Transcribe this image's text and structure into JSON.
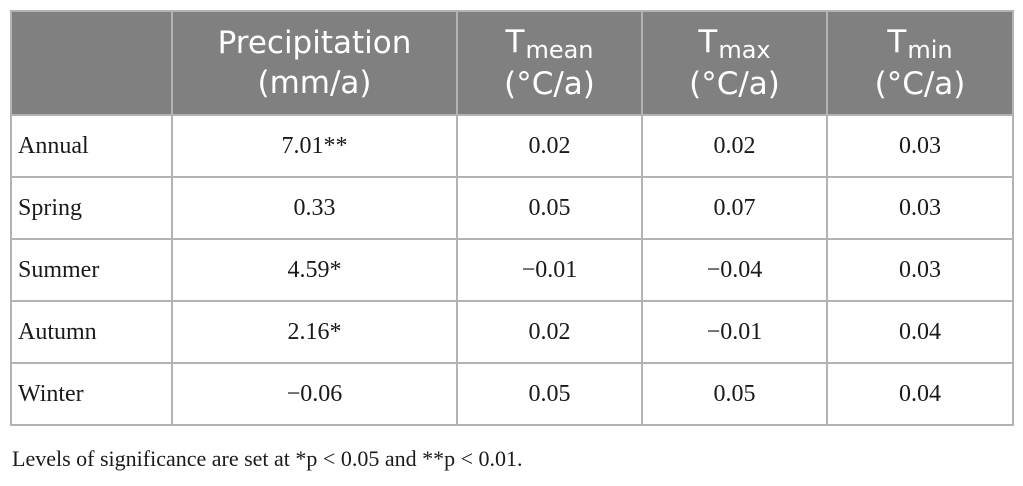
{
  "table": {
    "header": {
      "blank": "",
      "precipitation": {
        "line1": "Precipitation",
        "line2": "(mm/a)"
      },
      "tmean": {
        "base": "T",
        "sub": "mean",
        "unit": "(°C/a)"
      },
      "tmax": {
        "base": "T",
        "sub": "max",
        "unit": "(°C/a)"
      },
      "tmin": {
        "base": "T",
        "sub": "min",
        "unit": "(°C/a)"
      }
    },
    "rows": [
      {
        "label": "Annual",
        "precipitation": "7.01**",
        "tmean": "0.02",
        "tmax": "0.02",
        "tmin": "0.03"
      },
      {
        "label": "Spring",
        "precipitation": "0.33",
        "tmean": "0.05",
        "tmax": "0.07",
        "tmin": "0.03"
      },
      {
        "label": "Summer",
        "precipitation": "4.59*",
        "tmean": "−0.01",
        "tmax": "−0.04",
        "tmin": "0.03"
      },
      {
        "label": "Autumn",
        "precipitation": "2.16*",
        "tmean": "0.02",
        "tmax": "−0.01",
        "tmin": "0.04"
      },
      {
        "label": "Winter",
        "precipitation": "−0.06",
        "tmean": "0.05",
        "tmax": "0.05",
        "tmin": "0.04"
      }
    ]
  },
  "footnote": "Levels of significance are set at *p < 0.05 and **p < 0.01."
}
